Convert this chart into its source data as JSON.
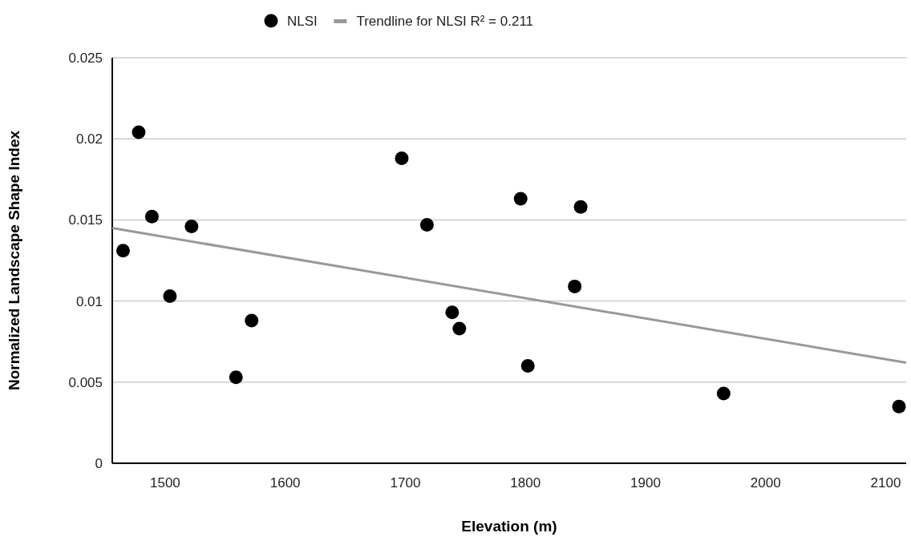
{
  "chart_data": {
    "type": "scatter",
    "xlabel": "Elevation (m)",
    "ylabel": "Normalized Landscape Shape Index",
    "xlim": [
      1456,
      2117
    ],
    "xticks": [
      1500,
      1600,
      1700,
      1800,
      1900,
      2000,
      2100
    ],
    "ylim": [
      0,
      0.025
    ],
    "yticks": [
      0,
      0.005,
      0.01,
      0.015,
      0.02,
      0.025
    ],
    "grid": "y",
    "legend": "top",
    "series": [
      {
        "name": "NLSI",
        "marker": "circle",
        "color": "#000000",
        "x": [
          1465,
          1478,
          1489,
          1504,
          1522,
          1559,
          1572,
          1697,
          1718,
          1739,
          1745,
          1796,
          1802,
          1841,
          1846,
          1965,
          2111
        ],
        "values": [
          0.0131,
          0.0204,
          0.0152,
          0.0103,
          0.0146,
          0.0053,
          0.0088,
          0.0188,
          0.0147,
          0.0093,
          0.0083,
          0.0163,
          0.006,
          0.0109,
          0.0158,
          0.0043,
          0.0035
        ]
      },
      {
        "name": "Trendline for NLSI R² = 0.211",
        "type": "line",
        "marker": "none",
        "color": "#999999",
        "x": [
          1456,
          2117
        ],
        "values": [
          0.0145,
          0.0062
        ]
      }
    ]
  }
}
